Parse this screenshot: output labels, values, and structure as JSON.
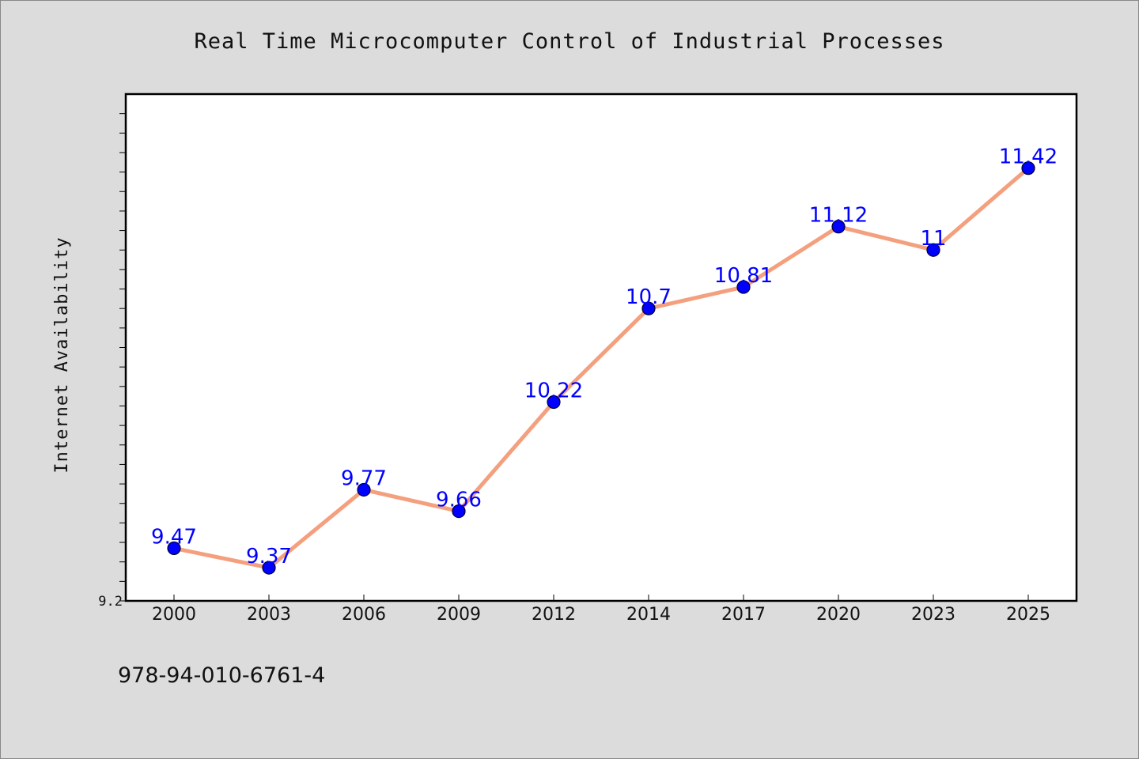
{
  "chart_data": {
    "type": "line",
    "title": "Real Time Microcomputer Control of Industrial Processes",
    "xlabel": "",
    "ylabel": "Internet Availability",
    "categories": [
      "2000",
      "2003",
      "2006",
      "2009",
      "2012",
      "2014",
      "2017",
      "2020",
      "2023",
      "2025"
    ],
    "series": [
      {
        "values": [
          9.47,
          9.37,
          9.77,
          9.66,
          10.22,
          10.7,
          10.81,
          11.12,
          11.0,
          11.42
        ]
      }
    ],
    "data_labels": [
      "9.47",
      "9.37",
      "9.77",
      "9.66",
      "10.22",
      "10.7",
      "10.81",
      "11.12",
      "11",
      "11.42"
    ],
    "ylim": [
      9.2,
      11.8
    ],
    "y_tick_labels": [
      "9.2"
    ],
    "y_minor_tick_step": 0.1,
    "grid": false,
    "legend": "none",
    "colors": {
      "line": "#f4a07e",
      "marker": "#0000ff",
      "label": "#0000ff",
      "plot_background": "#ffffff",
      "page_background": "#dcdcdc"
    }
  },
  "footer": {
    "isbn": "978-94-010-6761-4"
  }
}
